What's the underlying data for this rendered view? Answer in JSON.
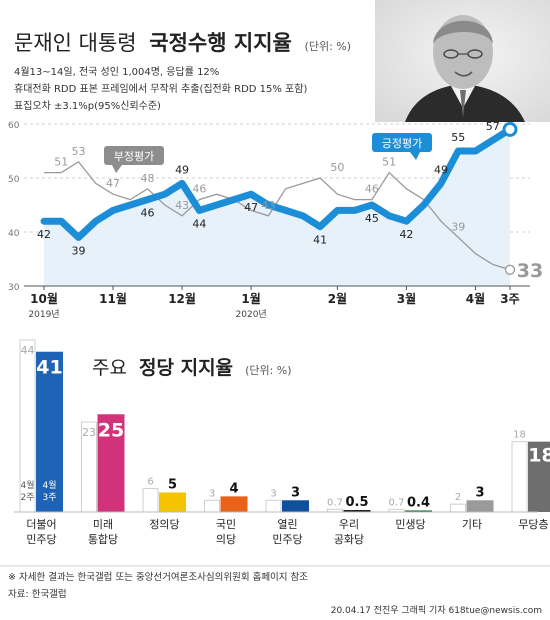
{
  "header": {
    "title_light": "문재인 대통령",
    "title_bold": "국정수행 지지율",
    "unit": "(단위: %)",
    "notes": [
      "4월13~14일, 전국 성인 1,004명, 응답률 12%",
      "휴대전화 RDD 표본 프레임에서 무작위 추출(집전화 RDD 15% 포함)",
      "표집오차 ±3.1%p(95%신뢰수준)"
    ]
  },
  "colors": {
    "approve": "#1c8ed8",
    "disapprove": "#9a9a9a",
    "band": "#e6f1fa",
    "text": "#222222",
    "bar_prev_fill": "#ffffff",
    "bar_prev_stroke": "#cfcfcf"
  },
  "chart_data": [
    {
      "type": "line",
      "title": "문재인 대통령 국정수행 지지율",
      "unit": "(단위: %)",
      "ylim": [
        30,
        60
      ],
      "y_ticks": [
        30,
        40,
        50,
        60
      ],
      "x_ticks": [
        {
          "label": "10월",
          "sub": "2019년",
          "at": 0
        },
        {
          "label": "11월",
          "sub": "",
          "at": 4
        },
        {
          "label": "12월",
          "sub": "",
          "at": 8
        },
        {
          "label": "1월",
          "sub": "2020년",
          "at": 12
        },
        {
          "label": "2월",
          "sub": "",
          "at": 17
        },
        {
          "label": "3월",
          "sub": "",
          "at": 21
        },
        {
          "label": "4월",
          "sub": "",
          "at": 25
        },
        {
          "label": "3주",
          "sub": "",
          "at": 27
        }
      ],
      "series": [
        {
          "name": "긍정평가",
          "values": [
            42,
            42,
            39,
            42,
            44,
            45,
            46,
            47,
            49,
            44,
            45,
            46,
            47,
            45,
            44,
            43,
            41,
            44,
            44,
            45,
            43,
            42,
            45,
            49,
            55,
            55,
            57,
            59
          ],
          "labels": [
            [
              0,
              42
            ],
            [
              2,
              39
            ],
            [
              6,
              46
            ],
            [
              8,
              49
            ],
            [
              9,
              44
            ],
            [
              12,
              47
            ],
            [
              16,
              41
            ],
            [
              19,
              45
            ],
            [
              21,
              42
            ],
            [
              23,
              49
            ],
            [
              24,
              55
            ],
            [
              26,
              57
            ]
          ],
          "final_label": "59"
        },
        {
          "name": "부정평가",
          "values": [
            51,
            51,
            53,
            49,
            47,
            46,
            48,
            45,
            43,
            46,
            47,
            46,
            44,
            43,
            48,
            49,
            50,
            47,
            46,
            46,
            51,
            48,
            46,
            42,
            39,
            36,
            34,
            33
          ],
          "labels": [
            [
              1,
              51
            ],
            [
              2,
              53
            ],
            [
              4,
              47
            ],
            [
              6,
              48
            ],
            [
              8,
              43
            ],
            [
              9,
              46
            ],
            [
              13,
              43
            ],
            [
              17,
              50
            ],
            [
              19,
              46
            ],
            [
              20,
              51
            ],
            [
              24,
              39
            ]
          ],
          "final_label": "33"
        }
      ]
    },
    {
      "type": "bar",
      "title": "주요 정당 지지율",
      "unit": "(단위: %)",
      "categories": [
        {
          "line1": "더불어",
          "line2": "민주당"
        },
        {
          "line1": "미래",
          "line2": "통합당"
        },
        {
          "line1": "정의당",
          "line2": ""
        },
        {
          "line1": "국민",
          "line2": "의당"
        },
        {
          "line1": "열린",
          "line2": "민주당"
        },
        {
          "line1": "우리",
          "line2": "공화당"
        },
        {
          "line1": "민생당",
          "line2": ""
        },
        {
          "line1": "기타",
          "line2": ""
        },
        {
          "line1": "무당층",
          "line2": ""
        }
      ],
      "ylim": [
        0,
        44
      ],
      "series": [
        {
          "name": "4월 2주",
          "values": [
            44,
            23,
            6,
            3,
            3,
            0.7,
            0.7,
            2,
            18
          ],
          "labels": [
            "44",
            "23",
            "6",
            "3",
            "3",
            "0.7",
            "0.7",
            "2",
            "18"
          ]
        },
        {
          "name": "4월 3주",
          "values": [
            41,
            25,
            5,
            4,
            3,
            0.5,
            0.4,
            3,
            18
          ],
          "labels": [
            "41",
            "25",
            "5",
            "4",
            "3",
            "0.5",
            "0.4",
            "3",
            "18"
          ]
        }
      ],
      "bar_colors": [
        "#1e63b5",
        "#d2327a",
        "#f5c400",
        "#e8621a",
        "#0f4f9c",
        "#1a1a1a",
        "#1a6b38",
        "#9a9a9a",
        "#6e6e6e"
      ],
      "legend_prev": {
        "line1": "4월",
        "line2": "2주"
      },
      "legend_curr": {
        "line1": "4월",
        "line2": "3주"
      }
    }
  ],
  "labels": {
    "approve_tag": "긍정평가",
    "disapprove_tag": "부정평가",
    "party_title_light": "주요",
    "party_title_bold": "정당 지지율",
    "party_unit": "(단위: %)"
  },
  "footer": {
    "note": "※ 자세한 결과는 한국갤럽 또는 중앙선거여론조사심의위원회 홈페이지 참조",
    "source": "자료: 한국갤럽",
    "credit": "20.04.17 전진우 그래픽 기자 618tue@newsis.com"
  }
}
